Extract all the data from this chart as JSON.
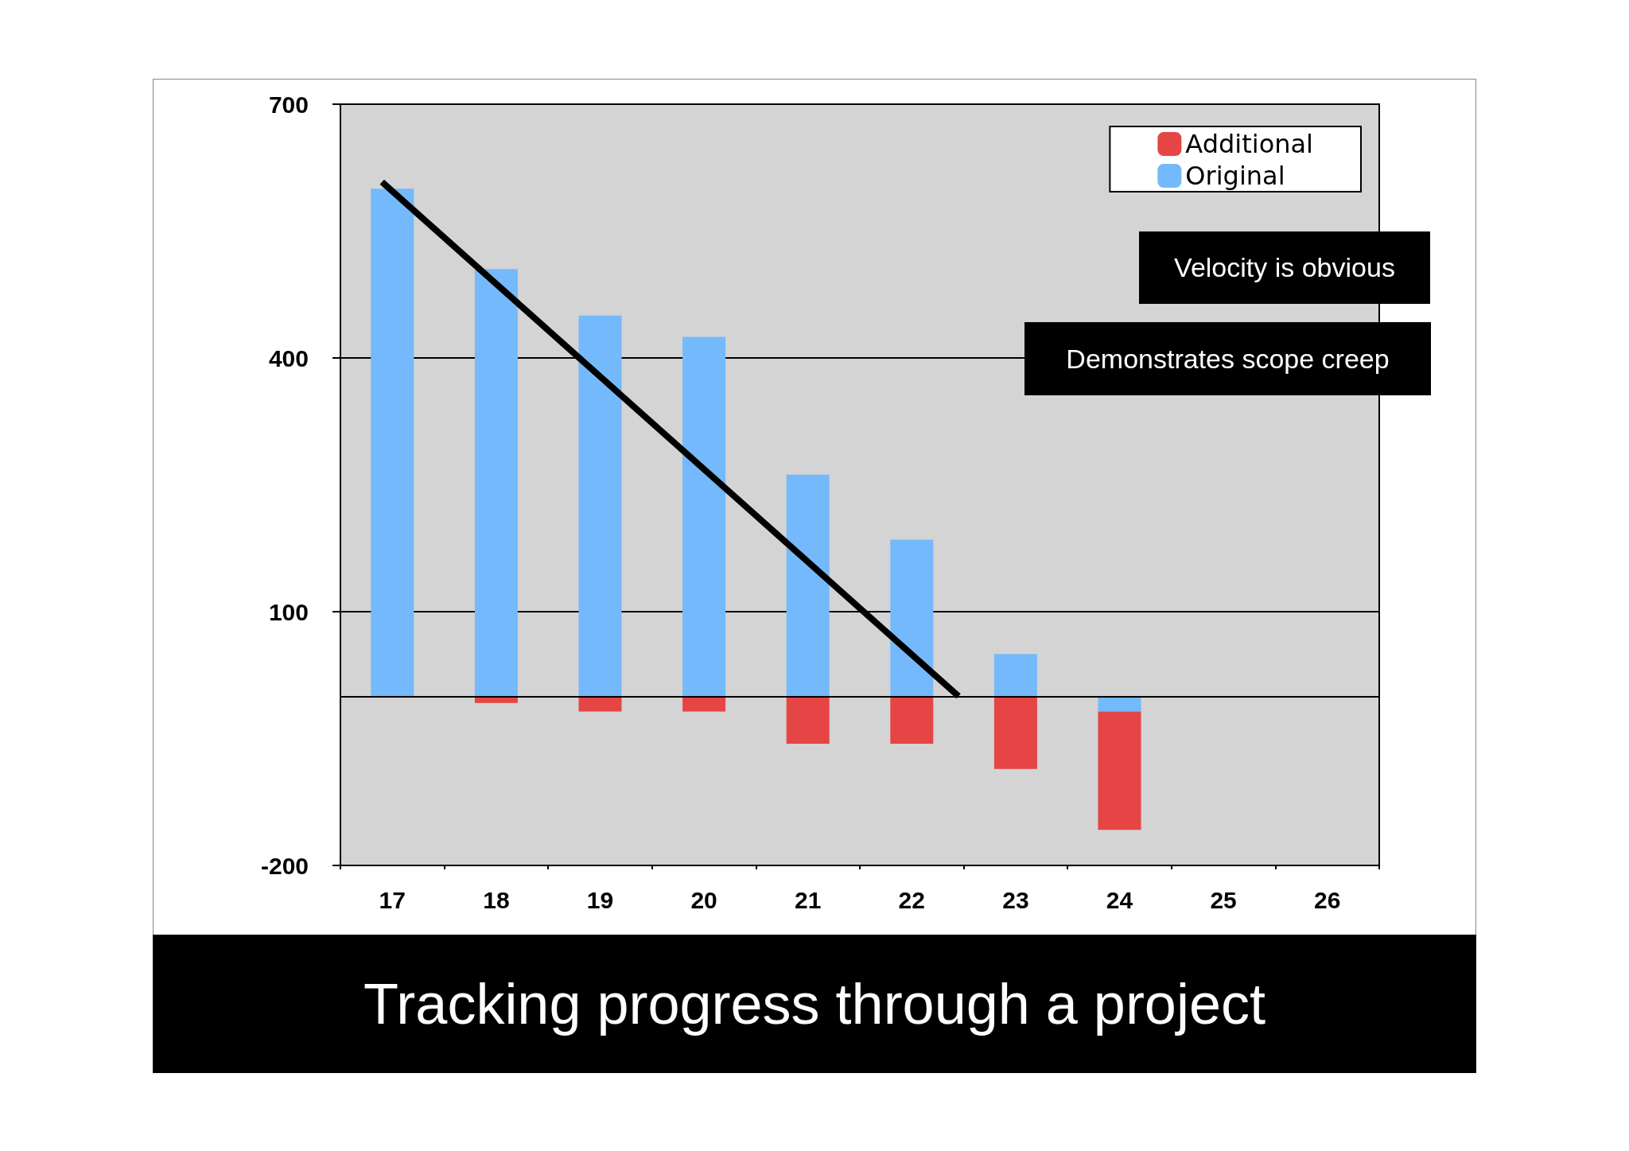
{
  "chart_data": {
    "type": "bar",
    "title": "Tracking progress through a project",
    "x": [
      17,
      18,
      19,
      20,
      21,
      22,
      23,
      24
    ],
    "xlim": [
      16.5,
      26.5
    ],
    "xticks": [
      17,
      18,
      19,
      20,
      21,
      22,
      23,
      24,
      25,
      26
    ],
    "ylim": [
      -200,
      700
    ],
    "yticks": [
      700,
      400,
      100,
      -200
    ],
    "stacked": true,
    "grid": "y",
    "legend": "top right",
    "series": [
      {
        "name": "Original",
        "color": "#74b9fb",
        "values": [
          600,
          505,
          450,
          425,
          262,
          185,
          50,
          -18
        ]
      },
      {
        "name": "Additional",
        "color": "#e64545",
        "values": [
          null,
          -8,
          -18,
          -18,
          -56,
          -56,
          -86,
          -140
        ]
      },
      {
        "type": "line",
        "color": "#000000",
        "x": [
          16.9,
          22.45
        ],
        "values": [
          608,
          0
        ],
        "marker": "none",
        "line_style": "solid"
      }
    ],
    "ref_lines": [
      {
        "axis": "y",
        "value": 0,
        "color": "#000000"
      }
    ],
    "annotations": [
      "Velocity is obvious",
      "Demonstrates scope creep"
    ]
  }
}
